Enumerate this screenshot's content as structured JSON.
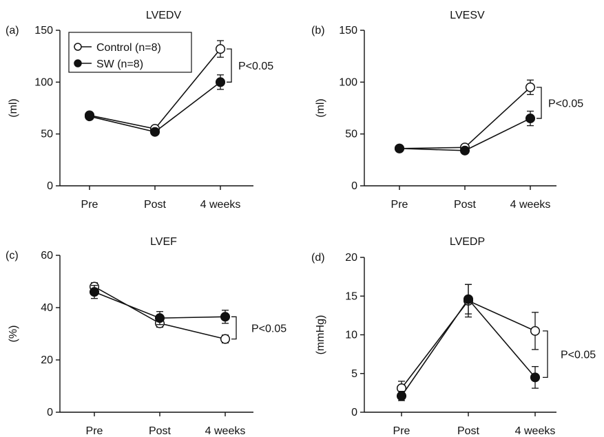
{
  "chart_data": [
    {
      "type": "line",
      "panel": "(a)",
      "title": "LVEDV",
      "ylabel": "(ml)",
      "categories": [
        "Pre",
        "Post",
        "4 weeks"
      ],
      "ylim": [
        0,
        150
      ],
      "yticks": [
        0,
        50,
        100,
        150
      ],
      "series": [
        {
          "name": "Control (n=8)",
          "marker": "open-circle",
          "values": [
            68,
            55,
            132
          ],
          "errors": [
            2,
            2,
            8
          ]
        },
        {
          "name": "SW (n=8)",
          "marker": "filled-circle",
          "values": [
            67,
            52,
            100
          ],
          "errors": [
            2,
            2,
            7
          ]
        }
      ],
      "annotation": "P<0.05",
      "legend": "top-left"
    },
    {
      "type": "line",
      "panel": "(b)",
      "title": "LVESV",
      "ylabel": "(ml)",
      "categories": [
        "Pre",
        "Post",
        "4 weeks"
      ],
      "ylim": [
        0,
        150
      ],
      "yticks": [
        0,
        50,
        100,
        150
      ],
      "series": [
        {
          "name": "Control (n=8)",
          "marker": "open-circle",
          "values": [
            36,
            37,
            95
          ],
          "errors": [
            1,
            1,
            7
          ]
        },
        {
          "name": "SW (n=8)",
          "marker": "filled-circle",
          "values": [
            36,
            34,
            65
          ],
          "errors": [
            1,
            1,
            7
          ]
        }
      ],
      "annotation": "P<0.05"
    },
    {
      "type": "line",
      "panel": "(c)",
      "title": "LVEF",
      "ylabel": "(%)",
      "categories": [
        "Pre",
        "Post",
        "4 weeks"
      ],
      "ylim": [
        0,
        60
      ],
      "yticks": [
        0,
        20,
        40,
        60
      ],
      "series": [
        {
          "name": "Control (n=8)",
          "marker": "open-circle",
          "values": [
            48,
            34,
            28
          ],
          "errors": [
            1.5,
            1.5,
            1.5
          ]
        },
        {
          "name": "SW (n=8)",
          "marker": "filled-circle",
          "values": [
            46,
            36,
            36.5
          ],
          "errors": [
            2.5,
            2.5,
            2.5
          ]
        }
      ],
      "annotation": "P<0.05"
    },
    {
      "type": "line",
      "panel": "(d)",
      "title": "LVEDP",
      "ylabel": "(mmHg)",
      "categories": [
        "Pre",
        "Post",
        "4 weeks"
      ],
      "ylim": [
        0,
        20
      ],
      "yticks": [
        0,
        5,
        10,
        15,
        20
      ],
      "series": [
        {
          "name": "Control (n=8)",
          "marker": "open-circle",
          "values": [
            3.1,
            14.4,
            10.5
          ],
          "errors": [
            0.9,
            2.1,
            2.4
          ]
        },
        {
          "name": "SW (n=8)",
          "marker": "filled-circle",
          "values": [
            2.1,
            14.6,
            4.5
          ],
          "errors": [
            0.6,
            1.9,
            1.4
          ]
        }
      ],
      "annotation": "P<0.05"
    }
  ]
}
